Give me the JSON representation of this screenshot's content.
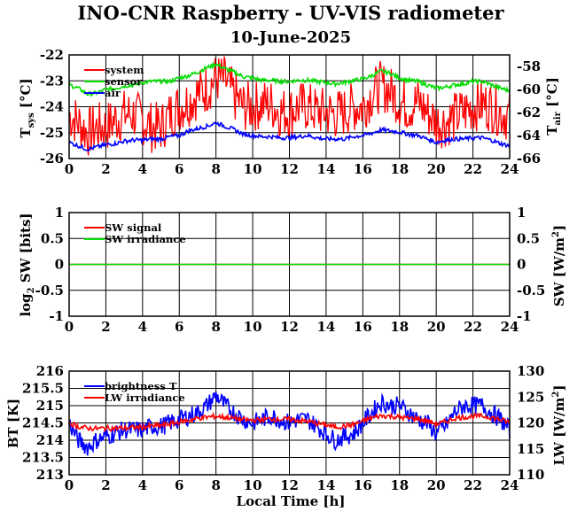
{
  "title": "INO-CNR Raspberry - UV-VIS radiometer",
  "subtitle": "10-June-2025",
  "chart_data": [
    {
      "type": "line",
      "x_ticks": [
        "0",
        "2",
        "4",
        "6",
        "8",
        "10",
        "12",
        "14",
        "16",
        "18",
        "20",
        "22",
        "24"
      ],
      "xlim": [
        0,
        24
      ],
      "ylabel_left": "T_sys [°C]",
      "ylabel_right": "T_air [°C]",
      "ylim": [
        -26,
        -22
      ],
      "y_ticks_left": [
        "-26",
        "-25",
        "-24",
        "-23",
        "-22"
      ],
      "ylim_right": [
        -66,
        -57
      ],
      "y_ticks_right": [
        "-66",
        "-64",
        "-62",
        "-60",
        "-58"
      ],
      "grid": true,
      "legend_position": "top-left",
      "series": [
        {
          "name": "system",
          "color": "#ff0000",
          "axis": "left",
          "x": [
            0,
            0.5,
            1,
            1.5,
            2,
            2.5,
            3,
            3.5,
            4,
            4.5,
            5,
            5.5,
            6,
            6.5,
            7,
            7.5,
            8,
            8.5,
            9,
            9.5,
            10,
            10.5,
            11,
            11.5,
            12,
            12.5,
            13,
            13.5,
            14,
            14.5,
            15,
            15.5,
            16,
            16.5,
            17,
            17.5,
            18,
            18.5,
            19,
            19.5,
            20,
            20.5,
            21,
            21.5,
            22,
            22.5,
            23,
            23.5,
            24
          ],
          "y": [
            -24.3,
            -24.6,
            -25.0,
            -24.8,
            -24.8,
            -24.5,
            -24.3,
            -24.3,
            -24.5,
            -24.8,
            -24.8,
            -24.3,
            -24.0,
            -23.8,
            -23.5,
            -23.3,
            -22.9,
            -23.0,
            -23.6,
            -24.0,
            -24.0,
            -23.9,
            -23.9,
            -24.2,
            -24.2,
            -24.0,
            -24.0,
            -24.2,
            -24.2,
            -24.3,
            -24.2,
            -24.0,
            -24.0,
            -23.5,
            -23.2,
            -23.4,
            -23.8,
            -24.0,
            -23.8,
            -24.2,
            -24.6,
            -24.6,
            -24.4,
            -24.2,
            -24.0,
            -23.9,
            -24.0,
            -24.2,
            -24.4
          ]
        },
        {
          "name": "sensor",
          "color": "#00dd00",
          "axis": "right",
          "x": [
            0,
            0.5,
            1,
            1.5,
            2,
            2.5,
            3,
            3.5,
            4,
            4.5,
            5,
            5.5,
            6,
            6.5,
            7,
            7.5,
            8,
            8.5,
            9,
            9.5,
            10,
            10.5,
            11,
            11.5,
            12,
            12.5,
            13,
            13.5,
            14,
            14.5,
            15,
            15.5,
            16,
            16.5,
            17,
            17.5,
            18,
            18.5,
            19,
            19.5,
            20,
            20.5,
            21,
            21.5,
            22,
            22.5,
            23,
            23.5,
            24
          ],
          "y": [
            -59.6,
            -59.9,
            -60.4,
            -60.3,
            -60.0,
            -59.9,
            -59.7,
            -59.6,
            -59.4,
            -59.3,
            -59.3,
            -59.3,
            -59.0,
            -58.8,
            -58.5,
            -58.1,
            -57.8,
            -58.2,
            -58.5,
            -58.9,
            -59.0,
            -59.2,
            -59.2,
            -59.3,
            -59.3,
            -59.2,
            -59.2,
            -59.3,
            -59.4,
            -59.5,
            -59.4,
            -59.2,
            -59.1,
            -58.8,
            -58.4,
            -58.6,
            -59.0,
            -59.2,
            -59.3,
            -59.6,
            -59.9,
            -59.8,
            -59.6,
            -59.5,
            -59.3,
            -59.3,
            -59.6,
            -59.9,
            -60.1
          ]
        },
        {
          "name": "air",
          "color": "#0000ff",
          "axis": "right",
          "x": [
            0,
            0.5,
            1,
            1.5,
            2,
            2.5,
            3,
            3.5,
            4,
            4.5,
            5,
            5.5,
            6,
            6.5,
            7,
            7.5,
            8,
            8.5,
            9,
            9.5,
            10,
            10.5,
            11,
            11.5,
            12,
            12.5,
            13,
            13.5,
            14,
            14.5,
            15,
            15.5,
            16,
            16.5,
            17,
            17.5,
            18,
            18.5,
            19,
            19.5,
            20,
            20.5,
            21,
            21.5,
            22,
            22.5,
            23,
            23.5,
            24
          ],
          "y": [
            -64.6,
            -64.9,
            -65.2,
            -65.0,
            -64.8,
            -64.7,
            -64.5,
            -64.4,
            -64.4,
            -64.3,
            -64.3,
            -64.1,
            -64.0,
            -63.6,
            -63.4,
            -63.2,
            -62.9,
            -63.2,
            -63.5,
            -63.9,
            -64.0,
            -64.1,
            -64.1,
            -64.2,
            -64.2,
            -64.1,
            -64.0,
            -64.2,
            -64.3,
            -64.3,
            -64.3,
            -64.1,
            -64.0,
            -63.8,
            -63.5,
            -63.6,
            -63.7,
            -63.9,
            -64.0,
            -64.3,
            -64.6,
            -64.4,
            -64.3,
            -64.3,
            -64.2,
            -64.2,
            -64.4,
            -64.7,
            -64.9
          ]
        }
      ]
    },
    {
      "type": "line",
      "x_ticks": [
        "0",
        "2",
        "4",
        "6",
        "8",
        "10",
        "12",
        "14",
        "16",
        "18",
        "20",
        "22",
        "24"
      ],
      "xlim": [
        0,
        24
      ],
      "ylabel_left": "log2 SW [bits]",
      "ylabel_right": "SW [W/m2]",
      "ylim": [
        -1,
        1
      ],
      "y_ticks_left": [
        "-1",
        "-0.5",
        "0",
        "0.5",
        "1"
      ],
      "ylim_right": [
        -1,
        1
      ],
      "y_ticks_right": [
        "-1",
        "-0.5",
        "0",
        "0.5",
        "1"
      ],
      "grid": true,
      "legend_position": "top-left",
      "series": [
        {
          "name": "SW signal",
          "color": "#ff0000",
          "axis": "left",
          "x": [
            0,
            24
          ],
          "y": [
            0,
            0
          ]
        },
        {
          "name": "SW irradiance",
          "color": "#00dd00",
          "axis": "right",
          "x": [
            0,
            24
          ],
          "y": [
            0,
            0
          ]
        }
      ]
    },
    {
      "type": "line",
      "x_ticks": [
        "0",
        "2",
        "4",
        "6",
        "8",
        "10",
        "12",
        "14",
        "16",
        "18",
        "20",
        "22",
        "24"
      ],
      "xlim": [
        0,
        24
      ],
      "xlabel": "Local Time [h]",
      "ylabel_left": "BT [K]",
      "ylabel_right": "LW [W/m2]",
      "ylim": [
        213,
        216
      ],
      "y_ticks_left": [
        "213",
        "213.5",
        "214",
        "214.5",
        "215",
        "215.5",
        "216"
      ],
      "ylim_right": [
        110,
        130
      ],
      "y_ticks_right": [
        "110",
        "115",
        "120",
        "125",
        "130"
      ],
      "grid": true,
      "legend_position": "top-left",
      "series": [
        {
          "name": "brightness T",
          "color": "#0000ff",
          "axis": "left",
          "x": [
            0,
            0.5,
            1,
            1.5,
            2,
            2.5,
            3,
            3.5,
            4,
            4.5,
            5,
            5.5,
            6,
            6.5,
            7,
            7.5,
            8,
            8.5,
            9,
            9.5,
            10,
            10.5,
            11,
            11.5,
            12,
            12.5,
            13,
            13.5,
            14,
            14.5,
            15,
            15.5,
            16,
            16.5,
            17,
            17.5,
            18,
            18.5,
            19,
            19.5,
            20,
            20.5,
            21,
            21.5,
            22,
            22.5,
            23,
            23.5,
            24
          ],
          "y": [
            214.5,
            214.0,
            213.8,
            214.0,
            214.1,
            214.2,
            214.3,
            214.3,
            214.3,
            214.4,
            214.4,
            214.5,
            214.6,
            214.7,
            214.8,
            215.0,
            215.3,
            215.0,
            214.8,
            214.6,
            214.5,
            214.6,
            214.7,
            214.6,
            214.5,
            214.6,
            214.6,
            214.4,
            214.2,
            214.0,
            214.1,
            214.2,
            214.5,
            214.8,
            215.1,
            215.0,
            215.0,
            214.8,
            214.6,
            214.5,
            214.2,
            214.4,
            214.8,
            215.0,
            215.0,
            215.0,
            214.8,
            214.6,
            214.3
          ]
        },
        {
          "name": "LW irradiance",
          "color": "#ff0000",
          "axis": "right",
          "x": [
            0,
            0.5,
            1,
            1.5,
            2,
            2.5,
            3,
            3.5,
            4,
            4.5,
            5,
            5.5,
            6,
            6.5,
            7,
            7.5,
            8,
            8.5,
            9,
            9.5,
            10,
            10.5,
            11,
            11.5,
            12,
            12.5,
            13,
            13.5,
            14,
            14.5,
            15,
            15.5,
            16,
            16.5,
            17,
            17.5,
            18,
            18.5,
            19,
            19.5,
            20,
            20.5,
            21,
            21.5,
            22,
            22.5,
            23,
            23.5,
            24
          ],
          "y": [
            120.0,
            119.3,
            119.0,
            118.9,
            119.0,
            119.0,
            119.0,
            119.1,
            119.2,
            119.4,
            119.5,
            119.8,
            120.2,
            120.5,
            120.9,
            121.1,
            121.3,
            121.1,
            120.9,
            120.6,
            120.5,
            120.6,
            120.8,
            120.7,
            120.7,
            120.5,
            120.3,
            119.9,
            119.6,
            119.2,
            119.4,
            119.7,
            120.3,
            121.0,
            121.4,
            121.3,
            121.1,
            120.9,
            120.8,
            120.4,
            119.8,
            120.2,
            120.9,
            121.1,
            121.3,
            121.3,
            121.1,
            120.6,
            120.1
          ]
        }
      ]
    }
  ]
}
